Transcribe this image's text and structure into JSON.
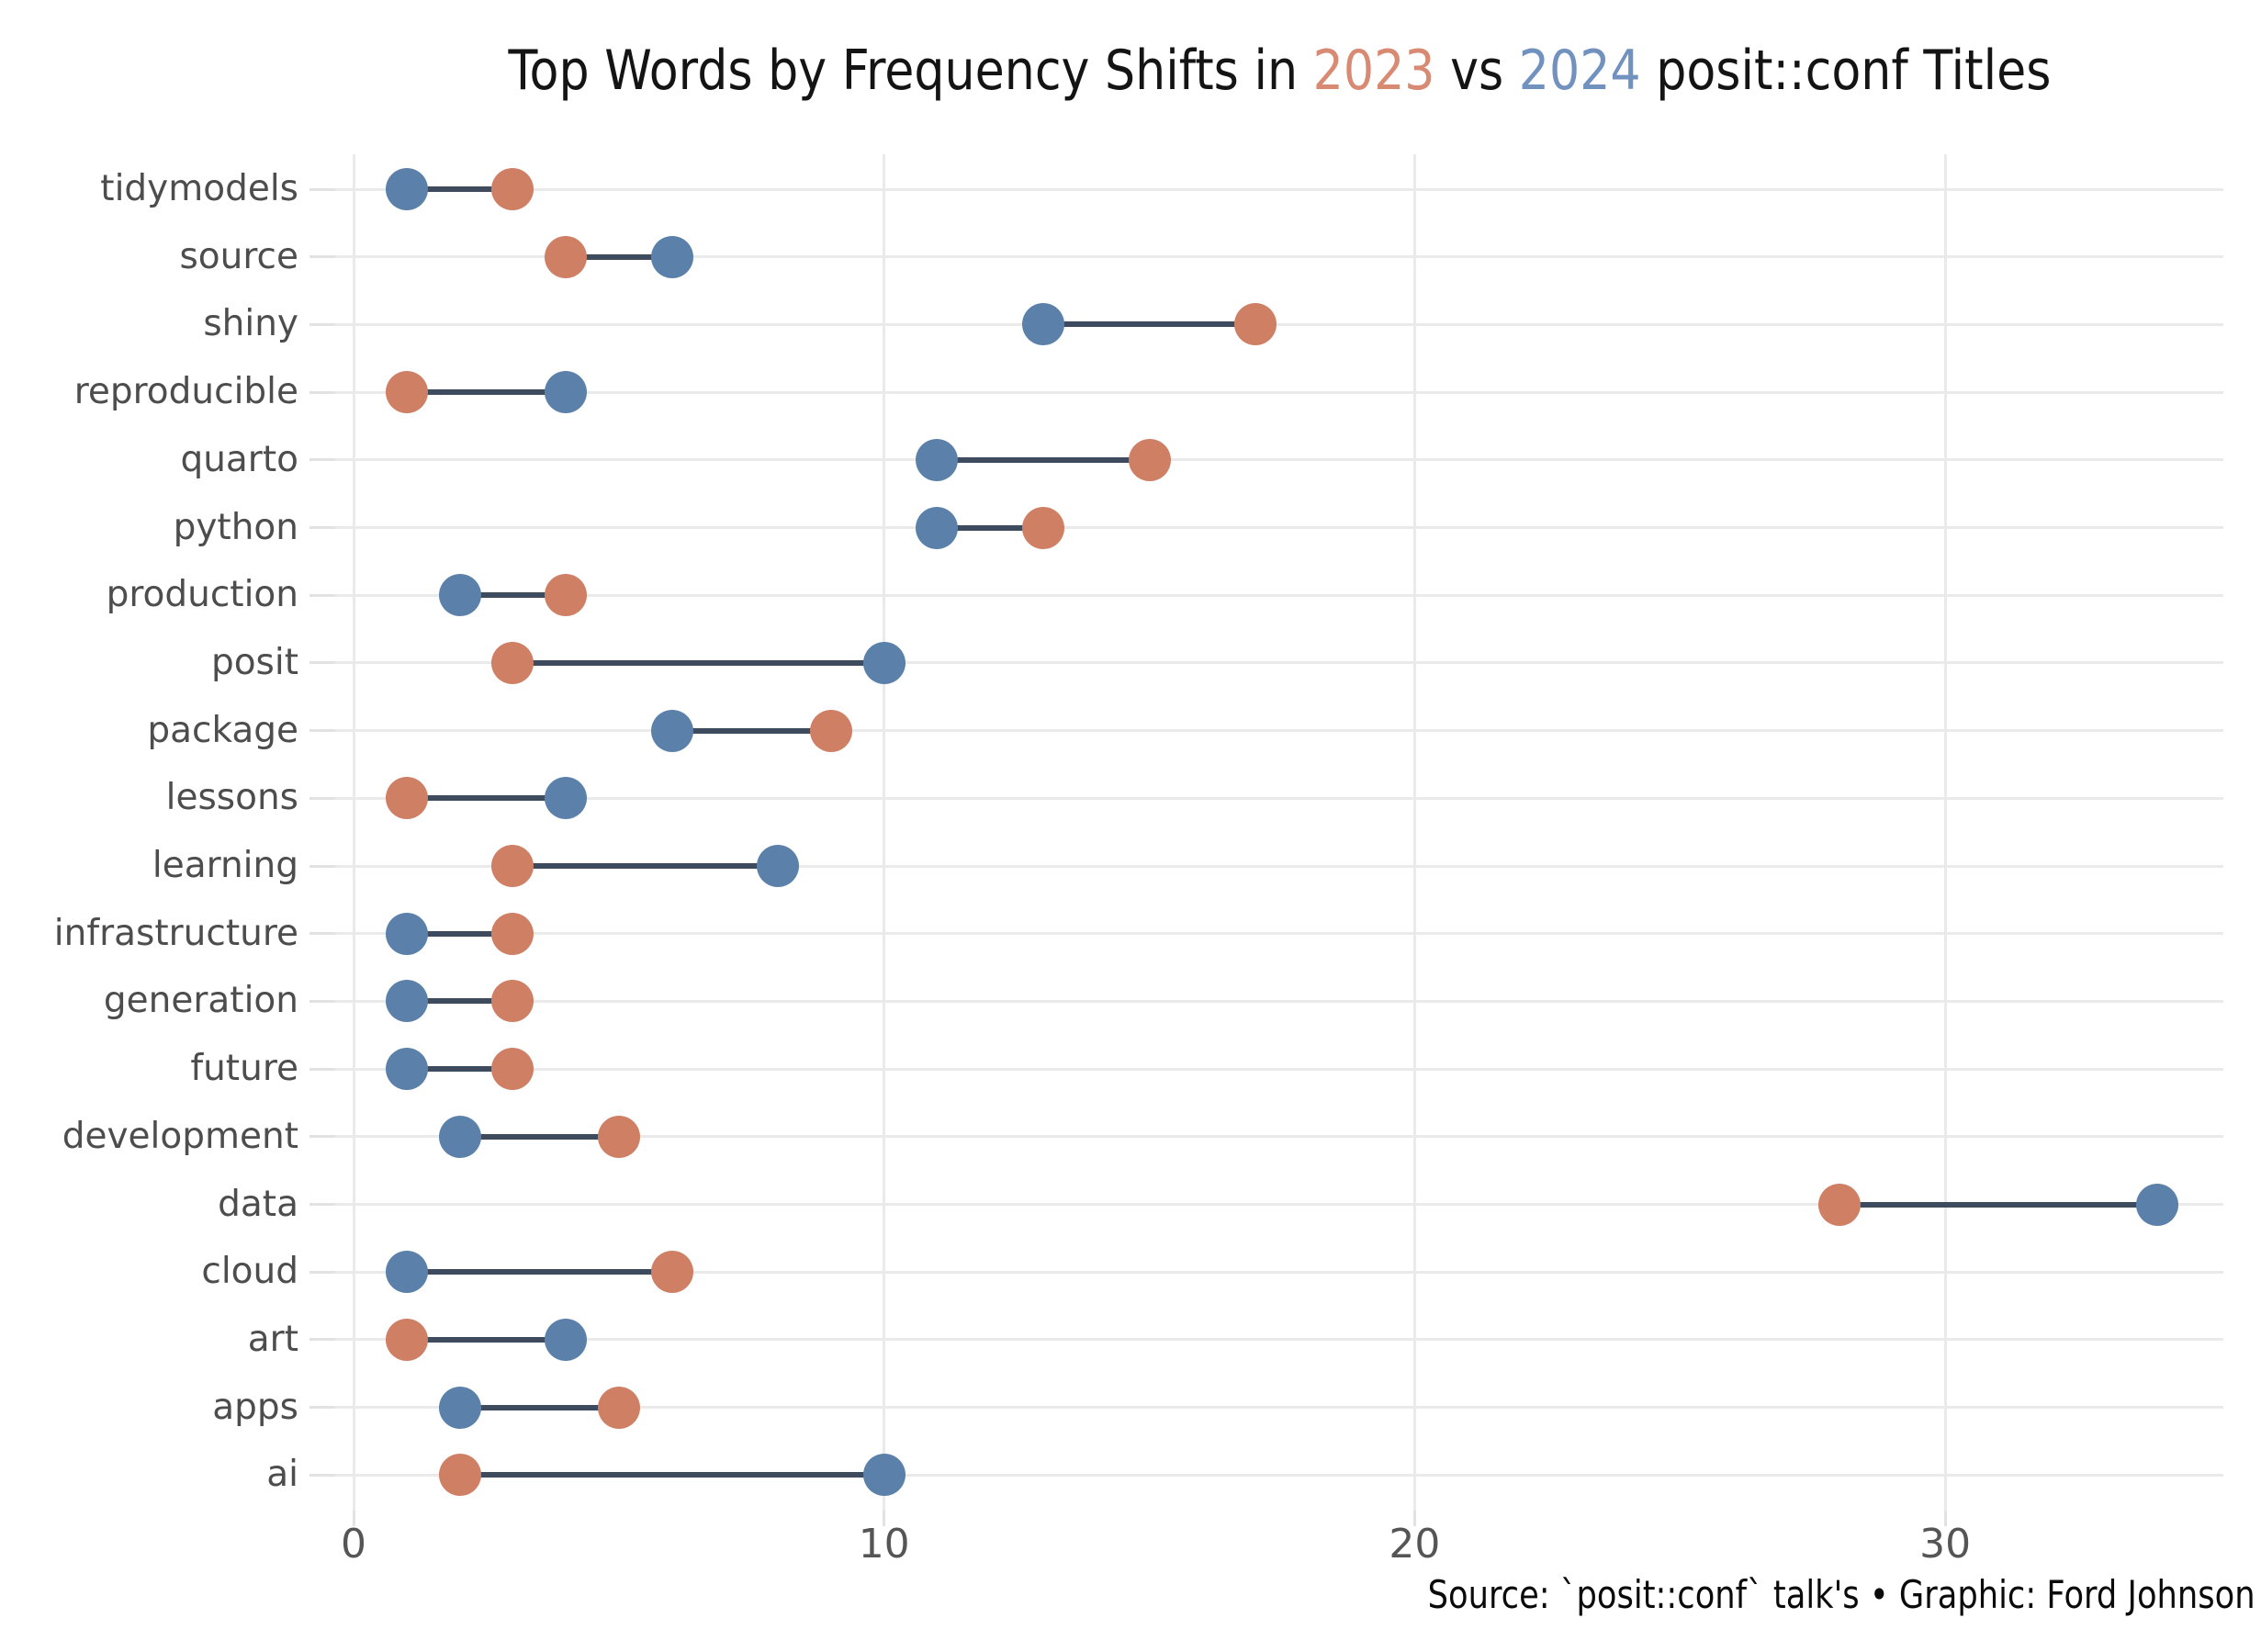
{
  "title": {
    "prefix": "Top Words by Frequency Shifts in ",
    "year_2023": "2023",
    "middle": " vs ",
    "year_2024": "2024",
    "suffix": " posit::conf Titles"
  },
  "caption": "Source: `posit::conf` talk's • Graphic: Ford Johnson",
  "colors": {
    "dot_2023": "#ce7f64",
    "dot_2024": "#5b81ab",
    "title_2023": "#d88a72",
    "title_2024": "#7191be",
    "segment": "#3e4a5e",
    "gridline": "#eaeaea",
    "axis_tick_text": "#555555",
    "category_text": "#4d4d4d"
  },
  "chart_data": {
    "type": "scatter",
    "variant": "dumbbell",
    "orientation": "horizontal",
    "title": "Top Words by Frequency Shifts in 2023 vs 2024 posit::conf Titles",
    "caption": "Source: `posit::conf` talk's • Graphic: Ford Johnson",
    "categories": [
      "tidymodels",
      "source",
      "shiny",
      "reproducible",
      "quarto",
      "python",
      "production",
      "posit",
      "package",
      "lessons",
      "learning",
      "infrastructure",
      "generation",
      "future",
      "development",
      "data",
      "cloud",
      "art",
      "apps",
      "ai"
    ],
    "series": [
      {
        "name": "2023",
        "color": "#ce7f64",
        "values": [
          3,
          4,
          17,
          1,
          15,
          13,
          4,
          3,
          9,
          1,
          3,
          3,
          3,
          3,
          5,
          28,
          6,
          1,
          5,
          2
        ]
      },
      {
        "name": "2024",
        "color": "#5b81ab",
        "values": [
          1,
          6,
          13,
          4,
          11,
          11,
          2,
          10,
          6,
          4,
          8,
          1,
          1,
          1,
          2,
          34,
          1,
          4,
          2,
          10
        ]
      }
    ],
    "xlabel": "",
    "ylabel": "",
    "x_ticks": [
      0,
      10,
      20,
      30
    ],
    "x_tick_labels": [
      "0",
      "10",
      "20",
      "30"
    ],
    "xlim": [
      -0.23,
      35.25
    ],
    "grid": true,
    "legend": "none (years are color-coded in the title)"
  }
}
